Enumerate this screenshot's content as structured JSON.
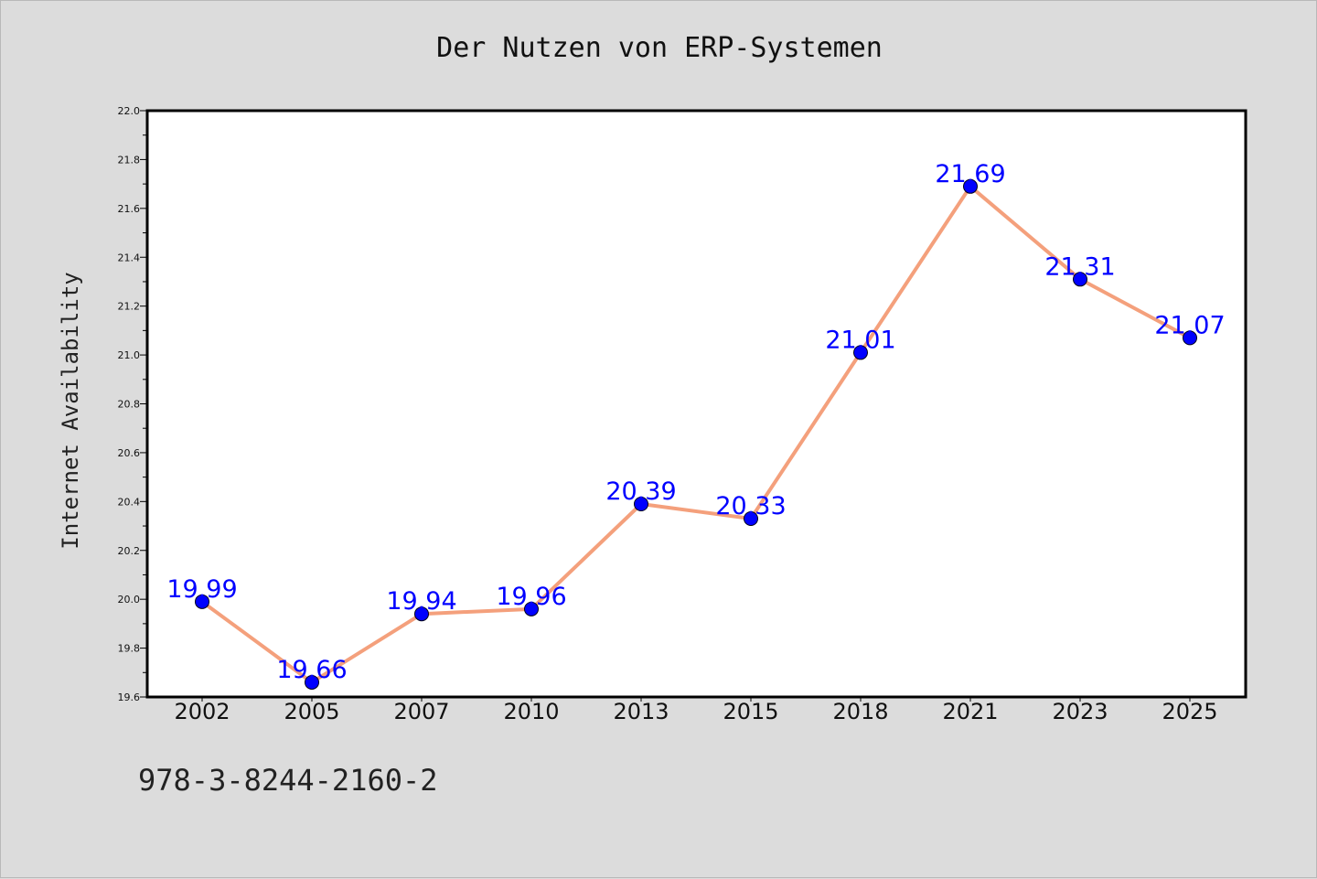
{
  "header": {
    "title": "Der Nutzen von ERP-Systemen"
  },
  "footer": {
    "identifier": "978-3-8244-2160-2"
  },
  "colors": {
    "background": "#dcdcdc",
    "plot_background": "#ffffff",
    "line": "#f4a07c",
    "marker": "#0000ff",
    "data_label": "#0000ff"
  },
  "chart_data": {
    "type": "line",
    "title": "Der Nutzen von ERP-Systemen",
    "xlabel": "",
    "ylabel": "Internet Availability",
    "categories": [
      "2002",
      "2005",
      "2007",
      "2010",
      "2013",
      "2015",
      "2018",
      "2021",
      "2023",
      "2025"
    ],
    "series": [
      {
        "values": [
          19.99,
          19.66,
          19.94,
          19.96,
          20.39,
          20.33,
          21.01,
          21.69,
          21.31,
          21.07
        ],
        "data_labels": [
          "19.99",
          "19.66",
          "19.94",
          "19.96",
          "20.39",
          "20.33",
          "21.01",
          "21.69",
          "21.31",
          "21.07"
        ]
      }
    ],
    "ylim": [
      19.6,
      22.0
    ],
    "yticks": [
      "19.6",
      "19.8",
      "20.0",
      "20.2",
      "20.4",
      "20.6",
      "20.8",
      "21.0",
      "21.2",
      "21.4",
      "21.6",
      "21.8",
      "22.0"
    ],
    "grid": false,
    "legend": "none"
  }
}
